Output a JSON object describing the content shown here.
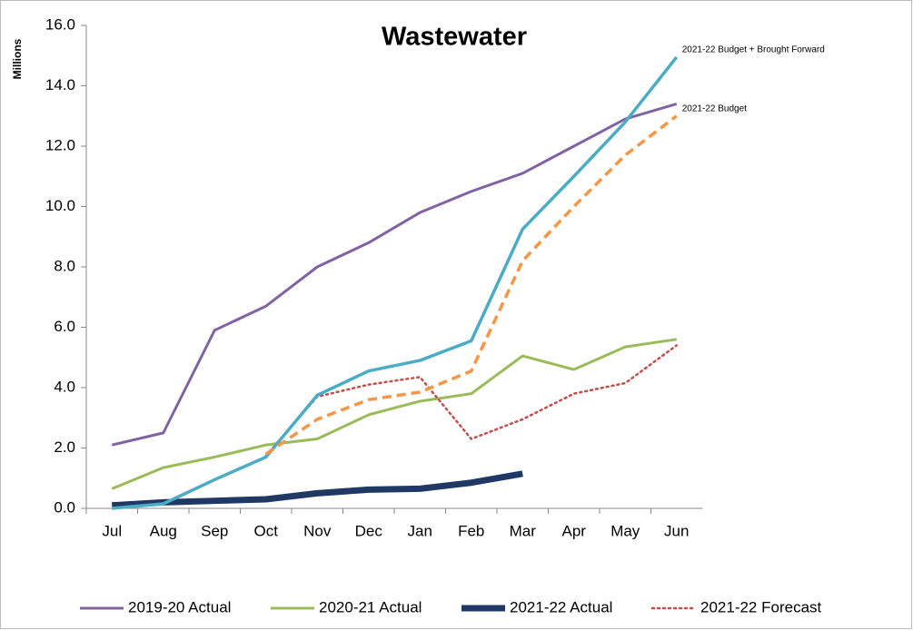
{
  "chart_data": {
    "type": "line",
    "title": "Wastewater",
    "y_label": "Millions",
    "categories": [
      "Jul",
      "Aug",
      "Sep",
      "Oct",
      "Nov",
      "Dec",
      "Jan",
      "Feb",
      "Mar",
      "Apr",
      "May",
      "Jun"
    ],
    "ylim": [
      0,
      16
    ],
    "yticks": [
      {
        "value": 0,
        "label": "0.0"
      },
      {
        "value": 2,
        "label": "2.0"
      },
      {
        "value": 4,
        "label": "4.0"
      },
      {
        "value": 6,
        "label": "6.0"
      },
      {
        "value": 8,
        "label": "8.0"
      },
      {
        "value": 10,
        "label": "10.0"
      },
      {
        "value": 12,
        "label": "12.0"
      },
      {
        "value": 14,
        "label": "14.0"
      },
      {
        "value": 16,
        "label": "16.0"
      }
    ],
    "grid": false,
    "legend": "bottom",
    "series": [
      {
        "name": "2019-20 Actual",
        "color": "#8064a2",
        "width": 3,
        "dash": "solid",
        "values": [
          2.1,
          2.5,
          5.9,
          6.7,
          8.0,
          8.8,
          9.8,
          10.5,
          11.1,
          12.0,
          12.9,
          13.4
        ]
      },
      {
        "name": "2020-21 Actual",
        "color": "#9bbb59",
        "width": 3,
        "dash": "solid",
        "values": [
          0.65,
          1.35,
          1.7,
          2.1,
          2.3,
          3.1,
          3.55,
          3.8,
          5.05,
          4.6,
          5.35,
          5.6
        ]
      },
      {
        "name": "2021-22 Actual",
        "color": "#1f3864",
        "width": 7,
        "dash": "solid",
        "values": [
          0.1,
          0.2,
          0.25,
          0.3,
          0.5,
          0.62,
          0.65,
          0.85,
          1.15,
          null,
          null,
          null
        ]
      },
      {
        "name": "2021-22 Forecast",
        "color": "#c0504d",
        "width": 2.5,
        "dash": "dotted",
        "values": [
          null,
          null,
          null,
          1.75,
          3.7,
          4.1,
          4.35,
          2.3,
          2.95,
          3.8,
          4.15,
          5.4
        ]
      },
      {
        "name": "2021-22 Budget + Brought Forward",
        "color": "#4bacc6",
        "width": 3.5,
        "dash": "solid",
        "legend": false,
        "values": [
          0.0,
          0.15,
          0.95,
          1.7,
          3.75,
          4.55,
          4.9,
          5.55,
          9.25,
          11.0,
          12.8,
          14.95
        ]
      },
      {
        "name": "2021-22 Budget",
        "color": "#f79646",
        "width": 3.5,
        "dash": "dashed",
        "legend": false,
        "values": [
          null,
          null,
          null,
          1.8,
          2.95,
          3.6,
          3.85,
          4.55,
          8.2,
          10.0,
          11.7,
          13.0
        ]
      }
    ]
  }
}
